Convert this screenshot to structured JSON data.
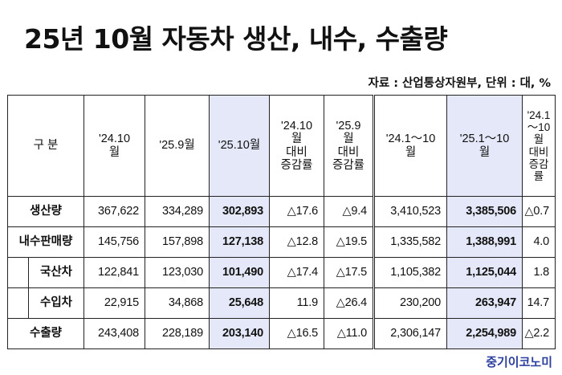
{
  "title": "25년 10월 자동차 생산, 내수, 수출량",
  "source": "자료 : 산업통상자원부, 단위 : 대, %",
  "table": {
    "header": {
      "category": "구 분",
      "cols": [
        "'24.10\n월",
        "'25.9월",
        "'25.10월",
        "'24.10\n월\n대비\n증감률",
        "'25.9\n월\n대비\n증감률",
        "'24.1～10\n월",
        "'25.1～10\n월",
        "'24.1\n～10월\n대비\n증감\n률"
      ]
    },
    "rows": [
      {
        "label": "생산량",
        "values": [
          "367,622",
          "334,289",
          "302,893",
          "△17.6",
          "△9.4",
          "3,410,523",
          "3,385,506",
          "△0.7"
        ]
      },
      {
        "label": "내수판매량",
        "values": [
          "145,756",
          "157,898",
          "127,138",
          "△12.8",
          "△19.5",
          "1,335,582",
          "1,388,991",
          "4.0"
        ]
      },
      {
        "label": "국산차",
        "values": [
          "122,841",
          "123,030",
          "101,490",
          "△17.4",
          "△17.5",
          "1,105,382",
          "1,125,044",
          "1.8"
        ]
      },
      {
        "label": "수입차",
        "values": [
          "22,915",
          "34,868",
          "25,648",
          "11.9",
          "△26.4",
          "230,200",
          "263,947",
          "14.7"
        ]
      },
      {
        "label": "수출량",
        "values": [
          "243,408",
          "228,189",
          "203,140",
          "△16.5",
          "△11.0",
          "2,306,147",
          "2,254,989",
          "△2.2"
        ]
      }
    ]
  },
  "watermark": "중기이코노미",
  "colors": {
    "highlight": "#e4e8f8",
    "watermark": "#2b3f9e"
  }
}
